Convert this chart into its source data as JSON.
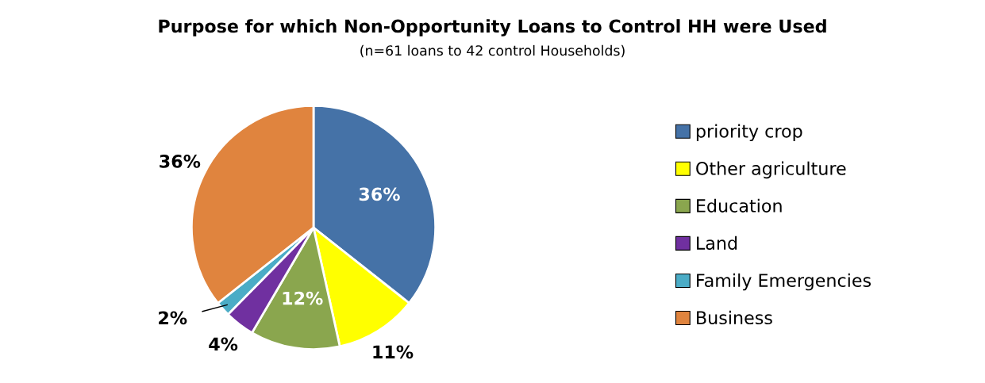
{
  "chart_data": {
    "type": "pie",
    "title": "Purpose for which Non-Opportunity Loans to Control HH were Used",
    "subtitle": "(n=61 loans to 42 control Households)",
    "categories": [
      "priority crop",
      "Other agriculture",
      "Education",
      "Land",
      "Family Emergencies",
      "Business"
    ],
    "values": [
      36,
      11,
      12,
      4,
      2,
      36
    ],
    "colors": [
      "#4572a7",
      "#ffff00",
      "#8aa64e",
      "#7030a0",
      "#4bacc6",
      "#e0843e"
    ],
    "value_labels": [
      "36%",
      "11%",
      "12%",
      "4%",
      "2%",
      "36%"
    ],
    "legend": "right"
  }
}
